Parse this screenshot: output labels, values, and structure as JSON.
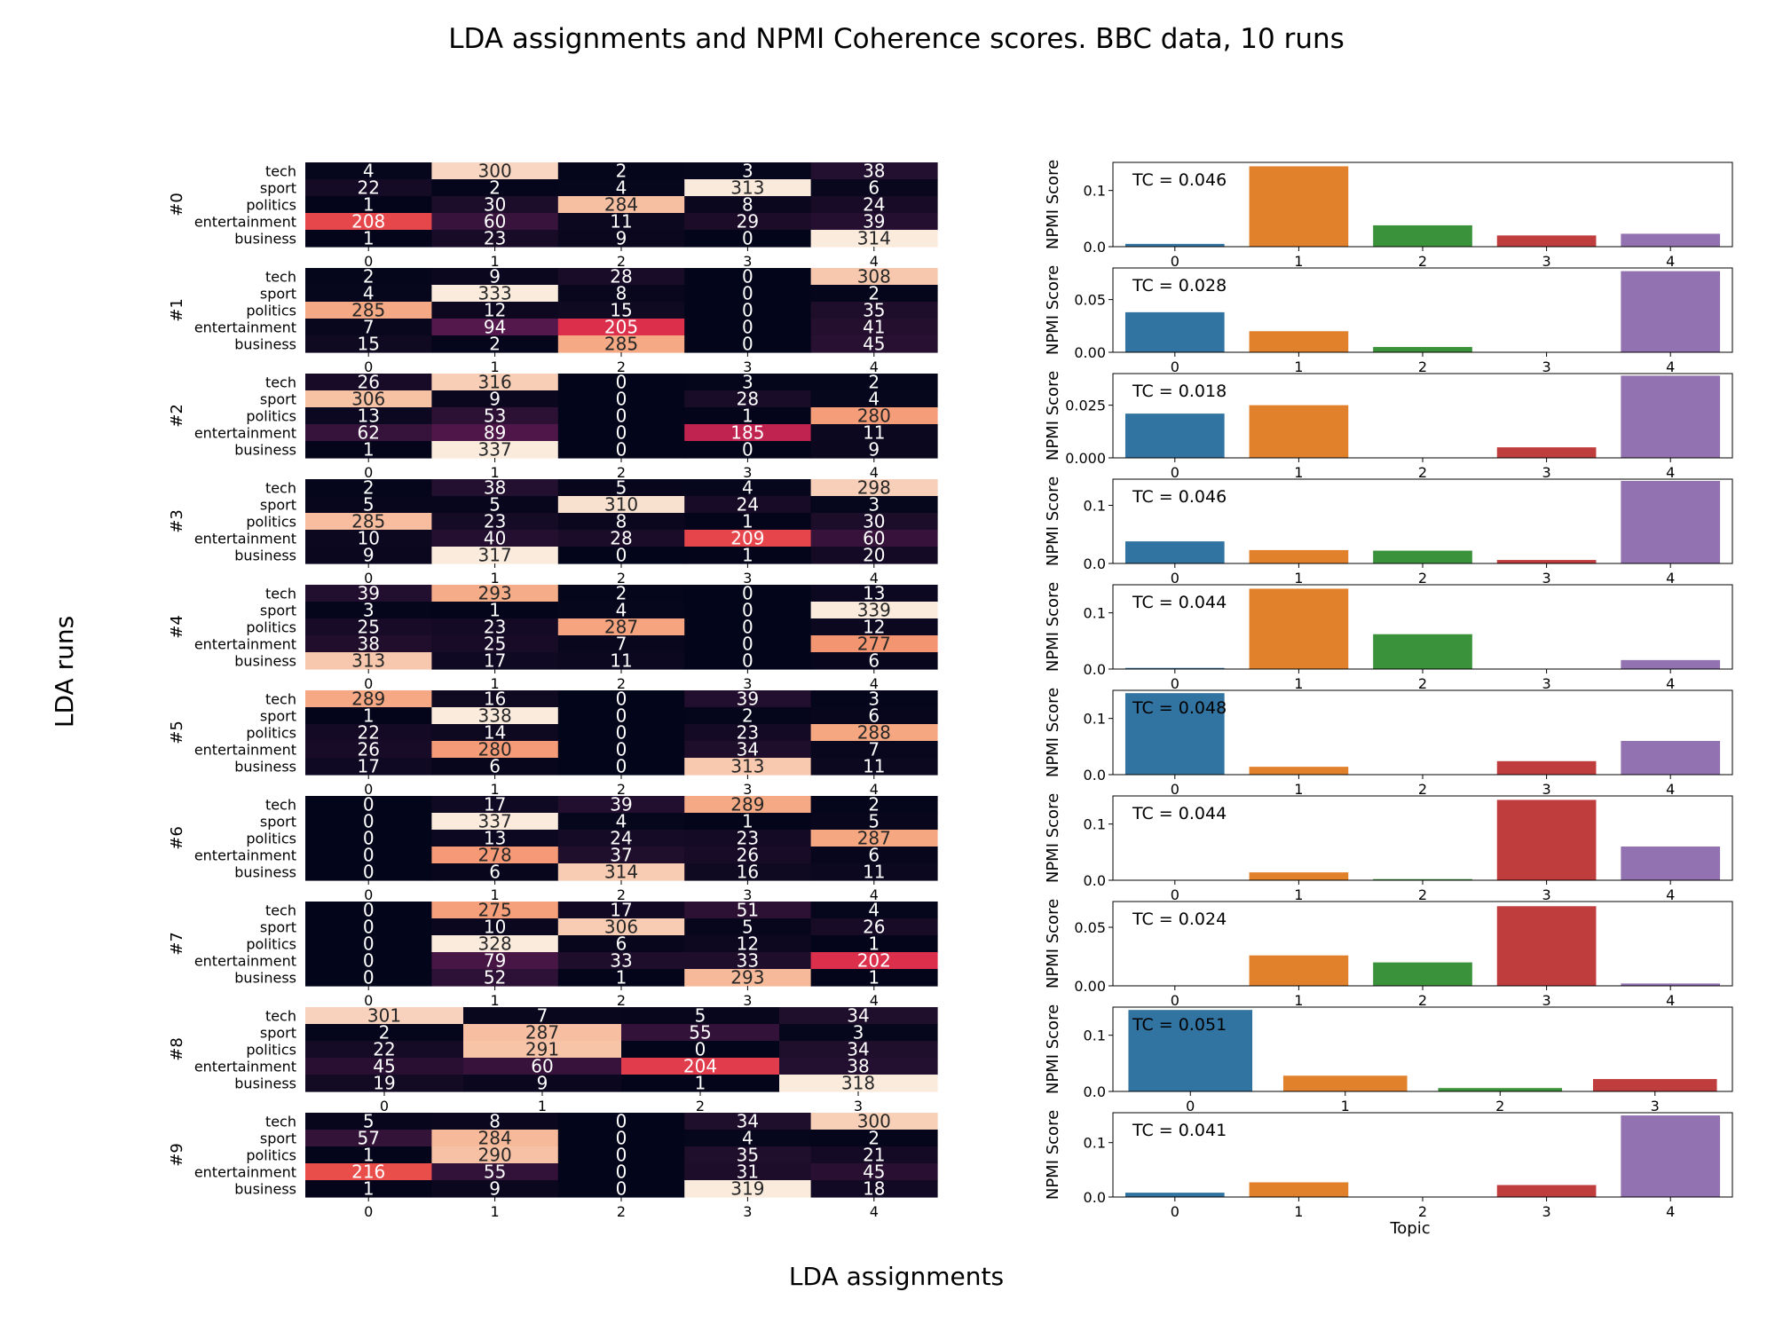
{
  "title": "LDA assignments and NPMI Coherence scores. BBC data, 10 runs",
  "left_label": "LDA runs",
  "bottom_label": "LDA assignments",
  "colors": {
    "topic": [
      "#3274a1",
      "#e1812c",
      "#3a923a",
      "#c03d3e",
      "#9372b2"
    ]
  },
  "chart_data": {
    "type": "heatmap",
    "categories": [
      "tech",
      "sport",
      "politics",
      "entertainment",
      "business"
    ],
    "npmi_ylabel": "NPMI Score",
    "npmi_xlabel": "Topic",
    "runs": [
      {
        "label": "#0",
        "topics": [
          "0",
          "1",
          "2",
          "3",
          "4"
        ],
        "tc": "TC = 0.046",
        "matrix": [
          [
            4,
            300,
            2,
            3,
            38
          ],
          [
            22,
            2,
            4,
            313,
            6
          ],
          [
            1,
            30,
            284,
            8,
            24
          ],
          [
            208,
            60,
            11,
            29,
            39
          ],
          [
            1,
            23,
            9,
            0,
            314
          ]
        ],
        "npmi": [
          0.005,
          0.143,
          0.038,
          0.02,
          0.023
        ],
        "yticks": [
          "0.0",
          "0.1"
        ],
        "ylim": [
          0,
          0.15
        ]
      },
      {
        "label": "#1",
        "topics": [
          "0",
          "1",
          "2",
          "3",
          "4"
        ],
        "tc": "TC = 0.028",
        "matrix": [
          [
            2,
            9,
            28,
            0,
            308
          ],
          [
            4,
            333,
            8,
            0,
            2
          ],
          [
            285,
            12,
            15,
            0,
            35
          ],
          [
            7,
            94,
            205,
            0,
            41
          ],
          [
            15,
            2,
            285,
            0,
            45
          ]
        ],
        "npmi": [
          0.038,
          0.02,
          0.005,
          0,
          0.077
        ],
        "yticks": [
          "0.00",
          "0.05"
        ],
        "ylim": [
          0,
          0.08
        ]
      },
      {
        "label": "#2",
        "topics": [
          "0",
          "1",
          "2",
          "3",
          "4"
        ],
        "tc": "TC = 0.018",
        "matrix": [
          [
            26,
            316,
            0,
            3,
            2
          ],
          [
            306,
            9,
            0,
            28,
            4
          ],
          [
            13,
            53,
            0,
            1,
            280
          ],
          [
            62,
            89,
            0,
            185,
            11
          ],
          [
            1,
            337,
            0,
            0,
            9
          ]
        ],
        "npmi": [
          0.021,
          0.025,
          0,
          0.005,
          0.039
        ],
        "yticks": [
          "0.000",
          "0.025"
        ],
        "ylim": [
          0,
          0.04
        ]
      },
      {
        "label": "#3",
        "topics": [
          "0",
          "1",
          "2",
          "3",
          "4"
        ],
        "tc": "TC = 0.046",
        "matrix": [
          [
            2,
            38,
            5,
            4,
            298
          ],
          [
            5,
            5,
            310,
            24,
            3
          ],
          [
            285,
            23,
            8,
            1,
            30
          ],
          [
            10,
            40,
            28,
            209,
            60
          ],
          [
            9,
            317,
            0,
            1,
            20
          ]
        ],
        "npmi": [
          0.038,
          0.023,
          0.022,
          0.006,
          0.142
        ],
        "yticks": [
          "0.0",
          "0.1"
        ],
        "ylim": [
          0,
          0.145
        ]
      },
      {
        "label": "#4",
        "topics": [
          "0",
          "1",
          "2",
          "3",
          "4"
        ],
        "tc": "TC = 0.044",
        "matrix": [
          [
            39,
            293,
            2,
            0,
            13
          ],
          [
            3,
            1,
            4,
            0,
            339
          ],
          [
            25,
            23,
            287,
            0,
            12
          ],
          [
            38,
            25,
            7,
            0,
            277
          ],
          [
            313,
            17,
            11,
            0,
            6
          ]
        ],
        "npmi": [
          0.002,
          0.143,
          0.062,
          0,
          0.016
        ],
        "yticks": [
          "0.0",
          "0.1"
        ],
        "ylim": [
          0,
          0.15
        ]
      },
      {
        "label": "#5",
        "topics": [
          "0",
          "1",
          "2",
          "3",
          "4"
        ],
        "tc": "TC = 0.048",
        "matrix": [
          [
            289,
            16,
            0,
            39,
            3
          ],
          [
            1,
            338,
            0,
            2,
            6
          ],
          [
            22,
            14,
            0,
            23,
            288
          ],
          [
            26,
            280,
            0,
            34,
            7
          ],
          [
            17,
            6,
            0,
            313,
            11
          ]
        ],
        "npmi": [
          0.145,
          0.014,
          0,
          0.024,
          0.06
        ],
        "yticks": [
          "0.0",
          "0.1"
        ],
        "ylim": [
          0,
          0.15
        ]
      },
      {
        "label": "#6",
        "topics": [
          "0",
          "1",
          "2",
          "3",
          "4"
        ],
        "tc": "TC = 0.044",
        "matrix": [
          [
            0,
            17,
            39,
            289,
            2
          ],
          [
            0,
            337,
            4,
            1,
            5
          ],
          [
            0,
            13,
            24,
            23,
            287
          ],
          [
            0,
            278,
            37,
            26,
            6
          ],
          [
            0,
            6,
            314,
            16,
            11
          ]
        ],
        "npmi": [
          0,
          0.014,
          0.002,
          0.143,
          0.06
        ],
        "yticks": [
          "0.0",
          "0.1"
        ],
        "ylim": [
          0,
          0.15
        ]
      },
      {
        "label": "#7",
        "topics": [
          "0",
          "1",
          "2",
          "3",
          "4"
        ],
        "tc": "TC = 0.024",
        "matrix": [
          [
            0,
            275,
            17,
            51,
            4
          ],
          [
            0,
            10,
            306,
            5,
            26
          ],
          [
            0,
            328,
            6,
            12,
            1
          ],
          [
            0,
            79,
            33,
            33,
            202
          ],
          [
            0,
            52,
            1,
            293,
            1
          ]
        ],
        "npmi": [
          0,
          0.026,
          0.02,
          0.068,
          0.002
        ],
        "yticks": [
          "0.00",
          "0.05"
        ],
        "ylim": [
          0,
          0.072
        ]
      },
      {
        "label": "#8",
        "topics": [
          "0",
          "1",
          "2",
          "3"
        ],
        "tc": "TC = 0.051",
        "matrix": [
          [
            301,
            7,
            5,
            34
          ],
          [
            2,
            287,
            55,
            3
          ],
          [
            22,
            291,
            0,
            34
          ],
          [
            45,
            60,
            204,
            38
          ],
          [
            19,
            9,
            1,
            318
          ]
        ],
        "npmi": [
          0.145,
          0.028,
          0.006,
          0.022
        ],
        "yticks": [
          "0.0",
          "0.1"
        ],
        "ylim": [
          0,
          0.15
        ]
      },
      {
        "label": "#9",
        "topics": [
          "0",
          "1",
          "2",
          "3",
          "4"
        ],
        "tc": "TC = 0.041",
        "matrix": [
          [
            5,
            8,
            0,
            34,
            300
          ],
          [
            57,
            284,
            0,
            4,
            2
          ],
          [
            1,
            290,
            0,
            35,
            21
          ],
          [
            216,
            55,
            0,
            31,
            45
          ],
          [
            1,
            9,
            0,
            319,
            18
          ]
        ],
        "npmi": [
          0.008,
          0.027,
          0,
          0.022,
          0.15
        ],
        "yticks": [
          "0.0",
          "0.1"
        ],
        "ylim": [
          0,
          0.155
        ]
      }
    ]
  }
}
